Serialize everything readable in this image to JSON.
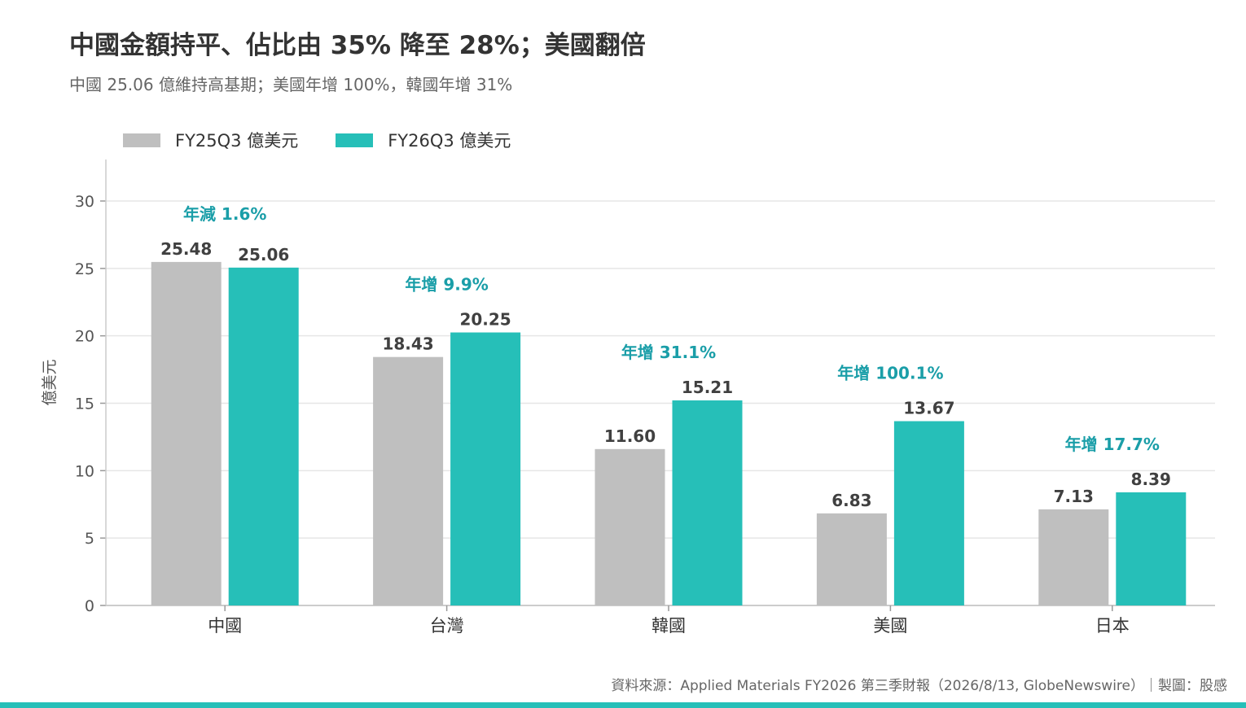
{
  "header": {
    "title": "中國金額持平、佔比由 35% 降至 28%；美國翻倍",
    "subtitle": "中國 25.06 億維持高基期；美國年增 100%，韓國年增 31%"
  },
  "colors": {
    "fy25": "#bfbfbf",
    "fy26": "#26bfb8",
    "annotation": "#1a9ea8",
    "grid": "#e6e6e6",
    "axis": "#cccccc"
  },
  "chart_data": {
    "type": "bar",
    "categories": [
      "中國",
      "台灣",
      "韓國",
      "美國",
      "日本"
    ],
    "series": [
      {
        "name": "FY25Q3 億美元",
        "values": [
          25.48,
          18.43,
          11.6,
          6.83,
          7.13
        ]
      },
      {
        "name": "FY26Q3 億美元",
        "values": [
          25.06,
          20.25,
          15.21,
          13.67,
          8.39
        ]
      }
    ],
    "value_labels": [
      [
        "25.48",
        "18.43",
        "11.60",
        "6.83",
        "7.13"
      ],
      [
        "25.06",
        "20.25",
        "15.21",
        "13.67",
        "8.39"
      ]
    ],
    "annotations": [
      "年減 1.6%",
      "年增 9.9%",
      "年增 31.1%",
      "年增 100.1%",
      "年增 17.7%"
    ],
    "ylabel": "億美元",
    "ylim": [
      0,
      30
    ],
    "yticks": [
      0,
      5,
      10,
      15,
      20,
      25,
      30
    ],
    "grid": true,
    "legend_position": "top-left"
  },
  "footer": {
    "source": "資料來源：Applied Materials FY2026 第三季財報（2026/8/13, GlobeNewswire）｜製圖：股感"
  }
}
